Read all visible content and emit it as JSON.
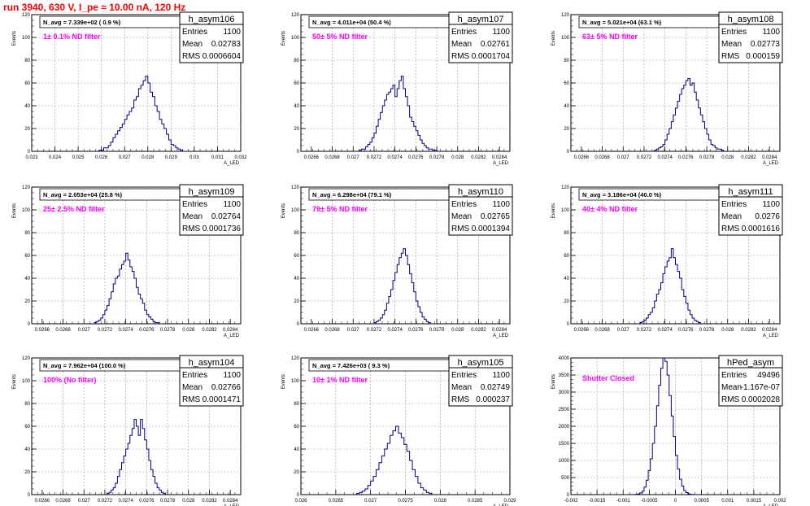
{
  "title": "run 3940,   630 V, I_pe ≈ 10.00 nA, 120 Hz",
  "chart_data": [
    {
      "type": "histogram",
      "name": "h_asym106",
      "stats": {
        "entries": "1100",
        "mean": "0.02783",
        "rms": "0.0006604"
      },
      "n_avg": "N_avg = 7.339e+02 ( 0.9 %)",
      "filter": "1± 0.1% ND filter",
      "ylabel": "Events",
      "xlabel": "A_LED",
      "xlim": [
        0.023,
        0.032
      ],
      "ylim": [
        0,
        120
      ],
      "xticks": [
        "0.023",
        "0.024",
        "0.025",
        "0.026",
        "0.027",
        "0.028",
        "0.029",
        "0.03",
        "0.031",
        "0.032"
      ],
      "yticks": [
        "0",
        "20",
        "40",
        "60",
        "80",
        "100",
        "120"
      ],
      "bins": {
        "start": 0.0259,
        "width": 0.0001,
        "values": [
          1,
          1,
          3,
          3,
          5,
          8,
          12,
          15,
          18,
          21,
          24,
          28,
          32,
          35,
          38,
          45,
          48,
          55,
          58,
          62,
          66,
          60,
          52,
          48,
          40,
          35,
          28,
          24,
          20,
          15,
          10,
          6,
          5,
          3,
          2,
          1
        ]
      }
    },
    {
      "type": "histogram",
      "name": "h_asym107",
      "stats": {
        "entries": "1100",
        "mean": "0.02761",
        "rms": "0.0001704"
      },
      "n_avg": "N_avg = 4.011e+04 (50.4 %)",
      "filter": "50± 5% ND filter",
      "ylabel": "Events",
      "xlabel": "A_LED",
      "xlim": [
        0.0265,
        0.0285
      ],
      "ylim": [
        0,
        120
      ],
      "xticks": [
        "0.0266",
        "0.0268",
        "0.027",
        "0.0272",
        "0.0274",
        "0.0276",
        "0.0278",
        "0.028",
        "0.0282",
        "0.0284"
      ],
      "yticks": [
        "0",
        "20",
        "40",
        "60",
        "80",
        "100",
        "120"
      ],
      "bins": {
        "start": 0.02706,
        "width": 2e-05,
        "values": [
          1,
          2,
          2,
          4,
          6,
          8,
          12,
          16,
          22,
          28,
          34,
          40,
          45,
          50,
          52,
          55,
          58,
          48,
          55,
          62,
          66,
          55,
          48,
          40,
          30,
          26,
          22,
          18,
          14,
          10,
          7,
          5,
          3,
          2,
          2,
          1,
          1
        ]
      }
    },
    {
      "type": "histogram",
      "name": "h_asym108",
      "stats": {
        "entries": "1100",
        "mean": "0.02773",
        "rms": "0.000159"
      },
      "n_avg": "N_avg = 5.021e+04 (63.1 %)",
      "filter": "63± 5% ND filter",
      "ylabel": "Events",
      "xlabel": "A_LED",
      "xlim": [
        0.0265,
        0.0285
      ],
      "ylim": [
        0,
        120
      ],
      "xticks": [
        "0.0266",
        "0.0268",
        "0.027",
        "0.0272",
        "0.0274",
        "0.0276",
        "0.0278",
        "0.028",
        "0.0282",
        "0.0284"
      ],
      "yticks": [
        "0",
        "20",
        "40",
        "60",
        "80",
        "100",
        "120"
      ],
      "bins": {
        "start": 0.0273,
        "width": 2e-05,
        "values": [
          1,
          2,
          3,
          4,
          6,
          10,
          15,
          20,
          26,
          32,
          38,
          44,
          50,
          55,
          58,
          62,
          64,
          58,
          60,
          52,
          45,
          38,
          32,
          26,
          20,
          15,
          10,
          6,
          5,
          3,
          2,
          2,
          1
        ]
      }
    },
    {
      "type": "histogram",
      "name": "h_asym109",
      "stats": {
        "entries": "1100",
        "mean": "0.02764",
        "rms": "0.0001736"
      },
      "n_avg": "N_avg = 2.053e+04 (25.8 %)",
      "filter": "25± 2.5% ND filter",
      "ylabel": "Events",
      "xlabel": "A_LED",
      "xlim": [
        0.0265,
        0.0285
      ],
      "ylim": [
        0,
        120
      ],
      "xticks": [
        "0.0266",
        "0.0268",
        "0.027",
        "0.0272",
        "0.0274",
        "0.0276",
        "0.0278",
        "0.028",
        "0.0282",
        "0.0284"
      ],
      "yticks": [
        "0",
        "20",
        "40",
        "60",
        "80",
        "100",
        "120"
      ],
      "bins": {
        "start": 0.0271,
        "width": 2e-05,
        "values": [
          1,
          2,
          3,
          5,
          8,
          12,
          16,
          22,
          28,
          35,
          40,
          42,
          48,
          52,
          55,
          62,
          56,
          50,
          46,
          40,
          32,
          26,
          22,
          18,
          12,
          8,
          6,
          4,
          2,
          1,
          1
        ]
      }
    },
    {
      "type": "histogram",
      "name": "h_asym110",
      "stats": {
        "entries": "1100",
        "mean": "0.02765",
        "rms": "0.0001394"
      },
      "n_avg": "N_avg = 6.298e+04 (79.1 %)",
      "filter": "79± 5% ND filter",
      "ylabel": "Events",
      "xlabel": "A_LED",
      "xlim": [
        0.0265,
        0.0285
      ],
      "ylim": [
        0,
        120
      ],
      "xticks": [
        "0.0266",
        "0.0268",
        "0.027",
        "0.0272",
        "0.0274",
        "0.0276",
        "0.0278",
        "0.028",
        "0.0282",
        "0.0284"
      ],
      "yticks": [
        "0",
        "20",
        "40",
        "60",
        "80",
        "100",
        "120"
      ],
      "bins": {
        "start": 0.0272,
        "width": 2e-05,
        "values": [
          1,
          2,
          3,
          5,
          8,
          12,
          18,
          24,
          30,
          38,
          45,
          52,
          58,
          62,
          66,
          60,
          52,
          44,
          36,
          28,
          20,
          15,
          10,
          6,
          4,
          2,
          1
        ]
      }
    },
    {
      "type": "histogram",
      "name": "h_asym111",
      "stats": {
        "entries": "1100",
        "mean": "0.0276",
        "rms": "0.0001616"
      },
      "n_avg": "N_avg = 3.186e+04 (40.0 %)",
      "filter": "40± 4% ND filter",
      "ylabel": "Events",
      "xlabel": "A_LED",
      "xlim": [
        0.0265,
        0.0285
      ],
      "ylim": [
        0,
        120
      ],
      "xticks": [
        "0.0266",
        "0.0268",
        "0.027",
        "0.0272",
        "0.0274",
        "0.0276",
        "0.0278",
        "0.028",
        "0.0282",
        "0.0284"
      ],
      "yticks": [
        "0",
        "20",
        "40",
        "60",
        "80",
        "100",
        "120"
      ],
      "bins": {
        "start": 0.02716,
        "width": 2e-05,
        "values": [
          1,
          2,
          3,
          5,
          8,
          10,
          14,
          20,
          26,
          30,
          36,
          44,
          50,
          55,
          58,
          66,
          58,
          52,
          46,
          40,
          30,
          24,
          18,
          12,
          8,
          5,
          3,
          2,
          1
        ]
      }
    },
    {
      "type": "histogram",
      "name": "h_asym104",
      "stats": {
        "entries": "1100",
        "mean": "0.02766",
        "rms": "0.0001471"
      },
      "n_avg": "N_avg = 7.962e+04 (100.0 %)",
      "filter": "100% (No filter)",
      "ylabel": "Events",
      "xlabel": "A_LED",
      "xlim": [
        0.0265,
        0.0285
      ],
      "ylim": [
        0,
        120
      ],
      "xticks": [
        "0.0266",
        "0.0268",
        "0.027",
        "0.0272",
        "0.0274",
        "0.0276",
        "0.0278",
        "0.028",
        "0.0282",
        "0.0284"
      ],
      "yticks": [
        "0",
        "20",
        "40",
        "60",
        "80",
        "100",
        "120"
      ],
      "bins": {
        "start": 0.02722,
        "width": 2e-05,
        "values": [
          1,
          2,
          4,
          6,
          10,
          16,
          22,
          28,
          34,
          40,
          45,
          52,
          58,
          66,
          60,
          52,
          66,
          58,
          48,
          40,
          30,
          22,
          16,
          10,
          6,
          4,
          2,
          1
        ]
      }
    },
    {
      "type": "histogram",
      "name": "h_asym105",
      "stats": {
        "entries": "1100",
        "mean": "0.02749",
        "rms": "0.000237"
      },
      "n_avg": "N_avg = 7.426e+03 ( 9.3 %)",
      "filter": "10± 1% ND filter",
      "ylabel": "Events",
      "xlabel": "A_LED",
      "xlim": [
        0.026,
        0.029
      ],
      "ylim": [
        0,
        120
      ],
      "xticks": [
        "0.026",
        "0.0265",
        "0.027",
        "0.0275",
        "0.028",
        "0.0285",
        "0.029"
      ],
      "yticks": [
        "0",
        "20",
        "40",
        "60",
        "80",
        "100",
        "120"
      ],
      "bins": {
        "start": 0.0268,
        "width": 4e-05,
        "values": [
          1,
          2,
          3,
          5,
          8,
          12,
          16,
          22,
          28,
          34,
          40,
          45,
          52,
          56,
          60,
          54,
          50,
          44,
          38,
          30,
          22,
          16,
          10,
          6,
          4,
          2,
          1
        ]
      }
    },
    {
      "type": "histogram",
      "name": "hPed_asym",
      "stats": {
        "entries": "49496",
        "mean": "-1.167e-07",
        "rms": "0.0002028"
      },
      "n_avg": "",
      "filter": "Shutter Closed",
      "ylabel": "Events",
      "xlabel": "A_LED",
      "xlim": [
        -0.002,
        0.002
      ],
      "ylim": [
        0,
        4000
      ],
      "xticks": [
        "-0.002",
        "-0.0015",
        "-0.001",
        "-0.0005",
        "0",
        "0.0005",
        "0.001",
        "0.0015",
        "0.002"
      ],
      "yticks": [
        "0",
        "500",
        "1000",
        "1500",
        "2000",
        "2500",
        "3000",
        "3500",
        "4000"
      ],
      "bins": {
        "start": -0.0008,
        "width": 4e-05,
        "values": [
          2,
          8,
          20,
          50,
          100,
          220,
          420,
          700,
          1050,
          1500,
          2000,
          2600,
          3200,
          3700,
          4000,
          3900,
          3500,
          2900,
          2300,
          1700,
          1150,
          750,
          450,
          250,
          120,
          60,
          25,
          10,
          3,
          1
        ]
      }
    }
  ]
}
